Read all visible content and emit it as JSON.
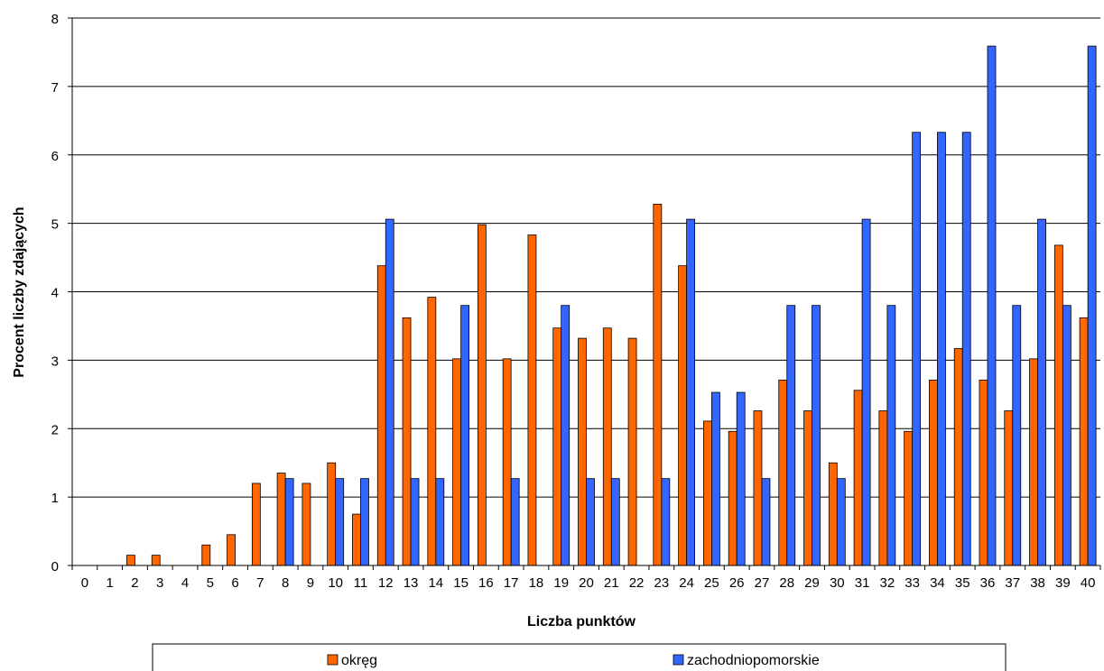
{
  "chart_data": {
    "type": "bar",
    "xlabel": "Liczba punktów",
    "ylabel": "Procent liczby zdających",
    "ylim": [
      0,
      8
    ],
    "yticks": [
      0,
      1,
      2,
      3,
      4,
      5,
      6,
      7,
      8
    ],
    "grid": true,
    "legend_position": "bottom",
    "categories": [
      "0",
      "1",
      "2",
      "3",
      "4",
      "5",
      "6",
      "7",
      "8",
      "9",
      "10",
      "11",
      "12",
      "13",
      "14",
      "15",
      "16",
      "17",
      "18",
      "19",
      "20",
      "21",
      "22",
      "23",
      "24",
      "25",
      "26",
      "27",
      "28",
      "29",
      "30",
      "31",
      "32",
      "33",
      "34",
      "35",
      "36",
      "37",
      "38",
      "39",
      "40"
    ],
    "series": [
      {
        "name": "okręg",
        "color": "#FF6600",
        "values": [
          0,
          0,
          0.15,
          0.15,
          0,
          0.3,
          0.45,
          1.2,
          1.35,
          1.2,
          1.5,
          0.75,
          4.38,
          3.62,
          3.92,
          3.02,
          4.98,
          3.02,
          4.83,
          3.47,
          3.32,
          3.47,
          3.32,
          5.28,
          4.38,
          2.11,
          1.96,
          2.26,
          2.71,
          2.26,
          1.5,
          2.56,
          2.26,
          1.96,
          2.71,
          3.17,
          2.71,
          2.26,
          3.02,
          4.68,
          3.62
        ]
      },
      {
        "name": "zachodniopomorskie",
        "color": "#3366FF",
        "values": [
          0,
          0,
          0,
          0,
          0,
          0,
          0,
          0,
          1.27,
          0,
          1.27,
          1.27,
          5.06,
          1.27,
          1.27,
          3.8,
          0,
          1.27,
          0,
          3.8,
          1.27,
          1.27,
          0,
          1.27,
          5.06,
          2.53,
          2.53,
          1.27,
          3.8,
          3.8,
          1.27,
          5.06,
          3.8,
          6.33,
          6.33,
          6.33,
          7.59,
          3.8,
          5.06,
          3.8,
          7.59
        ]
      }
    ]
  }
}
